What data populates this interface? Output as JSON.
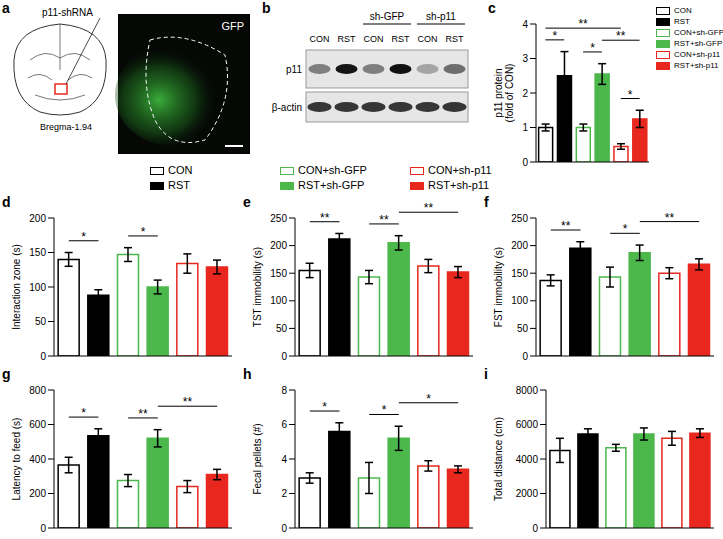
{
  "panel_a": {
    "label": "a",
    "texts": [
      "p11-shRNA",
      "Bregma-1.94",
      "GFP"
    ]
  },
  "panel_b": {
    "label": "b",
    "groups": [
      "sh-GFP",
      "sh-p11"
    ],
    "lanes": [
      "CON",
      "RST",
      "CON",
      "RST",
      "CON",
      "RST"
    ],
    "rows": [
      "p11",
      "β-actin"
    ]
  },
  "legend_entries": [
    {
      "name": "CON",
      "color": "#000000"
    },
    {
      "name": "RST",
      "color": "#000000"
    },
    {
      "name": "CON+sh-GFP",
      "color": "#4cb84c"
    },
    {
      "name": "RST+sh-GFP",
      "color": "#4cb84c"
    },
    {
      "name": "CON+sh-p11",
      "color": "#e8281e"
    },
    {
      "name": "RST+sh-p11",
      "color": "#e8281e"
    }
  ],
  "chart_data": [
    {
      "label": "c",
      "type": "bar",
      "ylabel": "p11 protein (fold of CON)",
      "categories": [
        "CON",
        "RST",
        "CON+sh-GFP",
        "RST+sh-GFP",
        "CON+sh-p11",
        "RST+sh-p11"
      ],
      "values": [
        1.0,
        2.5,
        1.0,
        2.55,
        0.45,
        1.25
      ],
      "errors": [
        0.1,
        0.7,
        0.1,
        0.3,
        0.08,
        0.25
      ],
      "colors": [
        "#000000",
        "#000000",
        "#4cb84c",
        "#4cb84c",
        "#e8281e",
        "#e8281e"
      ],
      "ylim": [
        0,
        4
      ],
      "yticks": [
        0,
        1,
        2,
        3,
        4
      ],
      "tick_labels": "y",
      "legend": "right",
      "annotations": [
        {
          "from": 0,
          "to": 1,
          "label": "*"
        },
        {
          "from": 2,
          "to": 3,
          "label": "*"
        },
        {
          "from": 4,
          "to": 5,
          "label": "*"
        },
        {
          "from": 3,
          "to": 5,
          "label": "**"
        },
        {
          "from": 0,
          "to": 4,
          "label": "**"
        }
      ]
    },
    {
      "label": "d",
      "type": "bar",
      "ylabel": "Interaction zone (s)",
      "categories": [
        "CON",
        "RST",
        "CON+sh-GFP",
        "RST+sh-GFP",
        "CON+sh-p11",
        "RST+sh-p11"
      ],
      "values": [
        140,
        88,
        147,
        100,
        134,
        129
      ],
      "errors": [
        10,
        8,
        10,
        10,
        14,
        10
      ],
      "colors": [
        "#000000",
        "#000000",
        "#4cb84c",
        "#4cb84c",
        "#e8281e",
        "#e8281e"
      ],
      "ylim": [
        0,
        200
      ],
      "yticks": [
        0,
        50,
        100,
        150,
        200
      ],
      "tick_labels": "y",
      "annotations": [
        {
          "from": 0,
          "to": 1,
          "label": "*"
        },
        {
          "from": 2,
          "to": 3,
          "label": "*"
        }
      ]
    },
    {
      "label": "e",
      "type": "bar",
      "ylabel": "TST immobility (s)",
      "categories": [
        "CON",
        "RST",
        "CON+sh-GFP",
        "RST+sh-GFP",
        "CON+sh-p11",
        "RST+sh-p11"
      ],
      "values": [
        155,
        212,
        143,
        205,
        163,
        152
      ],
      "errors": [
        13,
        10,
        12,
        13,
        12,
        10
      ],
      "colors": [
        "#000000",
        "#000000",
        "#4cb84c",
        "#4cb84c",
        "#e8281e",
        "#e8281e"
      ],
      "ylim": [
        0,
        250
      ],
      "yticks": [
        0,
        50,
        100,
        150,
        200,
        250
      ],
      "tick_labels": "y",
      "annotations": [
        {
          "from": 0,
          "to": 1,
          "label": "**"
        },
        {
          "from": 2,
          "to": 3,
          "label": "**"
        },
        {
          "from": 3,
          "to": 5,
          "label": "**"
        }
      ]
    },
    {
      "label": "f",
      "type": "bar",
      "ylabel": "FST immobility (s)",
      "categories": [
        "CON",
        "RST",
        "CON+sh-GFP",
        "RST+sh-GFP",
        "CON+sh-p11",
        "RST+sh-p11"
      ],
      "values": [
        137,
        195,
        143,
        187,
        150,
        166
      ],
      "errors": [
        10,
        12,
        18,
        14,
        10,
        10
      ],
      "colors": [
        "#000000",
        "#000000",
        "#4cb84c",
        "#4cb84c",
        "#e8281e",
        "#e8281e"
      ],
      "ylim": [
        0,
        250
      ],
      "yticks": [
        0,
        50,
        100,
        150,
        200,
        250
      ],
      "tick_labels": "y",
      "annotations": [
        {
          "from": 0,
          "to": 1,
          "label": "**"
        },
        {
          "from": 2,
          "to": 3,
          "label": "*"
        },
        {
          "from": 3,
          "to": 5,
          "label": "**"
        }
      ]
    },
    {
      "label": "g",
      "type": "bar",
      "ylabel": "Latency to feed (s)",
      "categories": [
        "CON",
        "RST",
        "CON+sh-GFP",
        "RST+sh-GFP",
        "CON+sh-p11",
        "RST+sh-p11"
      ],
      "values": [
        365,
        535,
        275,
        520,
        240,
        310
      ],
      "errors": [
        45,
        40,
        35,
        50,
        35,
        30
      ],
      "colors": [
        "#000000",
        "#000000",
        "#4cb84c",
        "#4cb84c",
        "#e8281e",
        "#e8281e"
      ],
      "ylim": [
        0,
        800
      ],
      "yticks": [
        0,
        200,
        400,
        600,
        800
      ],
      "tick_labels": "y",
      "annotations": [
        {
          "from": 0,
          "to": 1,
          "label": "*"
        },
        {
          "from": 2,
          "to": 3,
          "label": "**"
        },
        {
          "from": 3,
          "to": 5,
          "label": "**"
        }
      ]
    },
    {
      "label": "h",
      "type": "bar",
      "ylabel": "Fecal pellets (#)",
      "categories": [
        "CON",
        "RST",
        "CON+sh-GFP",
        "RST+sh-GFP",
        "CON+sh-p11",
        "RST+sh-p11"
      ],
      "values": [
        2.9,
        5.6,
        2.9,
        5.2,
        3.6,
        3.4
      ],
      "errors": [
        0.3,
        0.5,
        0.9,
        0.7,
        0.3,
        0.2
      ],
      "colors": [
        "#000000",
        "#000000",
        "#4cb84c",
        "#4cb84c",
        "#e8281e",
        "#e8281e"
      ],
      "ylim": [
        0,
        8
      ],
      "yticks": [
        0,
        2,
        4,
        6,
        8
      ],
      "tick_labels": "y",
      "annotations": [
        {
          "from": 0,
          "to": 1,
          "label": "*"
        },
        {
          "from": 2,
          "to": 3,
          "label": "*"
        },
        {
          "from": 3,
          "to": 5,
          "label": "*"
        }
      ]
    },
    {
      "label": "i",
      "type": "bar",
      "ylabel": "Total distance (cm)",
      "categories": [
        "CON",
        "RST",
        "CON+sh-GFP",
        "RST+sh-GFP",
        "CON+sh-p11",
        "RST+sh-p11"
      ],
      "values": [
        4500,
        5450,
        4650,
        5450,
        5200,
        5500
      ],
      "errors": [
        700,
        300,
        200,
        350,
        400,
        250
      ],
      "colors": [
        "#000000",
        "#000000",
        "#4cb84c",
        "#4cb84c",
        "#e8281e",
        "#e8281e"
      ],
      "ylim": [
        0,
        8000
      ],
      "yticks": [
        0,
        2000,
        4000,
        6000,
        8000
      ],
      "tick_labels": "y",
      "annotations": []
    }
  ]
}
